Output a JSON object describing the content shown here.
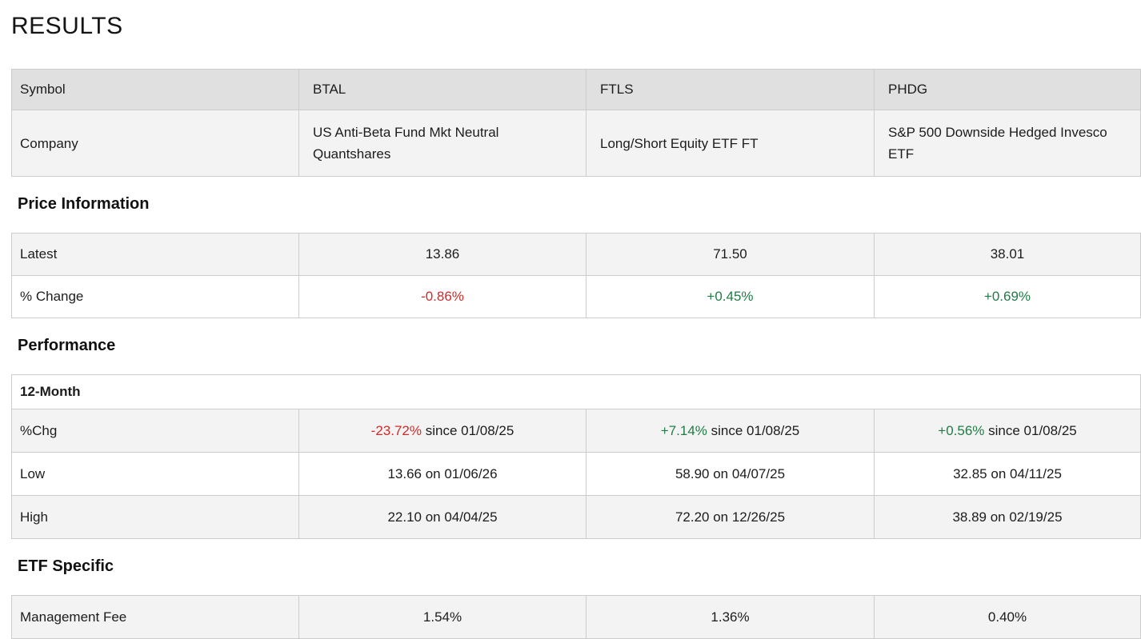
{
  "title": "RESULTS",
  "colors": {
    "positive": "#1f7d45",
    "negative": "#cf2b2b",
    "header_row_bg": "#e0e0e0",
    "stripe_bg": "#f3f3f3",
    "border": "#cccccc"
  },
  "comparison": {
    "symbol_label": "Symbol",
    "company_label": "Company",
    "columns": [
      {
        "symbol": "BTAL",
        "company": "US Anti-Beta Fund Mkt Neutral Quantshares"
      },
      {
        "symbol": "FTLS",
        "company": "Long/Short Equity ETF FT"
      },
      {
        "symbol": "PHDG",
        "company": "S&P 500 Downside Hedged Invesco ETF"
      }
    ]
  },
  "price_information": {
    "heading": "Price Information",
    "latest_label": "Latest",
    "latest": [
      "13.86",
      "71.50",
      "38.01"
    ],
    "change_label": "% Change",
    "change": [
      {
        "value": "-0.86%",
        "direction": "negative"
      },
      {
        "value": "+0.45%",
        "direction": "positive"
      },
      {
        "value": "+0.69%",
        "direction": "positive"
      }
    ]
  },
  "performance": {
    "heading": "Performance",
    "subheader": "12-Month",
    "chg_label": "%Chg",
    "chg": [
      {
        "pct": "-23.72%",
        "rest": "since 01/08/25",
        "direction": "negative"
      },
      {
        "pct": "+7.14%",
        "rest": "since 01/08/25",
        "direction": "positive"
      },
      {
        "pct": "+0.56%",
        "rest": "since 01/08/25",
        "direction": "positive"
      }
    ],
    "low_label": "Low",
    "low": [
      "13.66 on 01/06/26",
      "58.90 on 04/07/25",
      "32.85 on 04/11/25"
    ],
    "high_label": "High",
    "high": [
      "22.10 on 04/04/25",
      "72.20 on 12/26/25",
      "38.89 on 02/19/25"
    ]
  },
  "etf_specific": {
    "heading": "ETF Specific",
    "fee_label": "Management Fee",
    "fee": [
      "1.54%",
      "1.36%",
      "0.40%"
    ]
  }
}
